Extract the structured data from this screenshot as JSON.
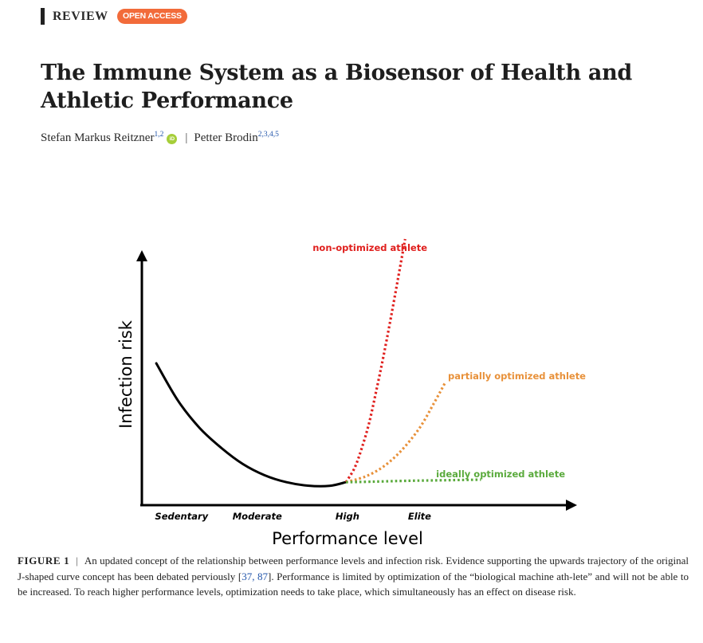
{
  "header": {
    "article_type": "REVIEW",
    "access_badge": "OPEN ACCESS"
  },
  "article": {
    "title": "The Immune System as a Biosensor of Health and Athletic Performance",
    "authors": [
      {
        "name": "Stefan Markus Reitzner",
        "affiliations": "1,2",
        "orcid": "iD"
      },
      {
        "name": "Petter Brodin",
        "affiliations": "2,3,4,5"
      }
    ],
    "author_separator": "|"
  },
  "chart_data": {
    "type": "line",
    "title": "",
    "xlabel": "Performance level",
    "ylabel": "Infection risk",
    "categories": [
      "Sedentary",
      "Moderate",
      "High",
      "Elite"
    ],
    "xlim": [
      0,
      4.2
    ],
    "ylim": [
      0,
      10
    ],
    "series": [
      {
        "name": "baseline",
        "style": "solid",
        "color": "#000000",
        "x": [
          0.2,
          0.5,
          0.8,
          1.1,
          1.4,
          1.7,
          2.0,
          2.3,
          2.6,
          2.83
        ],
        "y": [
          5.0,
          3.5,
          2.4,
          1.6,
          0.95,
          0.5,
          0.22,
          0.08,
          0.07,
          0.22
        ]
      },
      {
        "name": "non-optimized athlete",
        "style": "dotted",
        "color": "#e0201e",
        "x": [
          2.83,
          2.95,
          3.05,
          3.15,
          3.25,
          3.35,
          3.45,
          3.55,
          3.65
        ],
        "y": [
          0.22,
          0.8,
          1.6,
          2.6,
          3.9,
          5.3,
          6.8,
          8.4,
          10.0
        ]
      },
      {
        "name": "partially optimized athlete",
        "style": "dotted",
        "color": "#e8913a",
        "x": [
          2.83,
          3.1,
          3.35,
          3.6,
          3.85,
          4.05,
          4.2
        ],
        "y": [
          0.22,
          0.45,
          0.85,
          1.5,
          2.4,
          3.4,
          4.2
        ]
      },
      {
        "name": "ideally optimized athlete",
        "style": "dotted",
        "color": "#5aaa3c",
        "x": [
          2.83,
          3.2,
          3.6,
          4.0,
          4.7
        ],
        "y": [
          0.22,
          0.24,
          0.27,
          0.29,
          0.32
        ]
      }
    ],
    "annotations": {
      "non_optimized": "non-optimized athlete",
      "partially_optimized": "partially optimized athlete",
      "ideally_optimized": "ideally optimized athlete"
    },
    "grid": false,
    "legend": "inline labels"
  },
  "caption": {
    "label": "FIGURE 1",
    "separator": "|",
    "text_before_refs": "An updated concept of the relationship between performance levels and infection risk. Evidence supporting the upwards trajectory of the original J-shaped curve concept has been debated perviously [",
    "refs": "37, 87",
    "text_after_refs": "]. Performance is limited by optimization of the “biological machine ath-lete” and will not be able to be increased. To reach higher performance levels, optimization needs to take place, which simultaneously has an effect on disease risk."
  },
  "colors": {
    "badge": "#f26b3a",
    "link": "#2255aa",
    "orcid": "#a6ce39"
  }
}
